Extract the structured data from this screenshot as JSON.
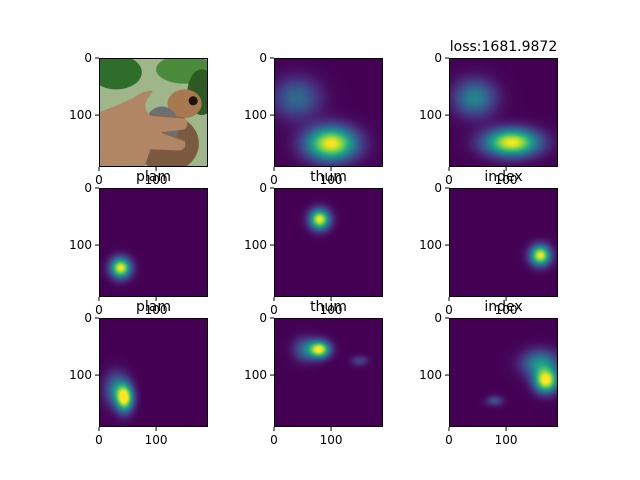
{
  "figure": {
    "title": "loss:1681.9872"
  },
  "chart_data": [
    {
      "type": "heatmap",
      "content": "photo",
      "title": "",
      "xticks": [
        "0",
        "100"
      ],
      "yticks": [
        "0",
        "100"
      ],
      "xlim": [
        0,
        191
      ],
      "ylim": [
        191,
        0
      ]
    },
    {
      "type": "heatmap",
      "content": "heatmap",
      "title": "",
      "xticks": [
        "0",
        "100"
      ],
      "yticks": [
        "0",
        "100"
      ],
      "xlim": [
        0,
        191
      ],
      "ylim": [
        191,
        0
      ],
      "blobs": [
        {
          "x": 100,
          "y": 150,
          "sx": 30,
          "sy": 20,
          "v": 1.0
        },
        {
          "x": 40,
          "y": 70,
          "sx": 28,
          "sy": 24,
          "v": 0.35
        }
      ]
    },
    {
      "type": "heatmap",
      "content": "heatmap",
      "title": "loss:1681.9872",
      "xticks": [
        "0",
        "100"
      ],
      "yticks": [
        "0",
        "100"
      ],
      "xlim": [
        0,
        191
      ],
      "ylim": [
        191,
        0
      ],
      "blobs": [
        {
          "x": 110,
          "y": 148,
          "sx": 32,
          "sy": 16,
          "v": 1.0
        },
        {
          "x": 45,
          "y": 70,
          "sx": 25,
          "sy": 22,
          "v": 0.45
        }
      ]
    },
    {
      "type": "heatmap",
      "content": "heatmap",
      "title": "plam",
      "xticks": [
        "0",
        "100"
      ],
      "yticks": [
        "0",
        "100"
      ],
      "xlim": [
        0,
        191
      ],
      "ylim": [
        191,
        0
      ],
      "blobs": [
        {
          "x": 38,
          "y": 140,
          "sx": 12,
          "sy": 12,
          "v": 1.0
        }
      ]
    },
    {
      "type": "heatmap",
      "content": "heatmap",
      "title": "thum",
      "xticks": [
        "0",
        "100"
      ],
      "yticks": [
        "0",
        "100"
      ],
      "xlim": [
        0,
        191
      ],
      "ylim": [
        191,
        0
      ],
      "blobs": [
        {
          "x": 80,
          "y": 55,
          "sx": 12,
          "sy": 12,
          "v": 1.0
        }
      ]
    },
    {
      "type": "heatmap",
      "content": "heatmap",
      "title": "index",
      "xticks": [
        "0",
        "100"
      ],
      "yticks": [
        "0",
        "100"
      ],
      "xlim": [
        0,
        191
      ],
      "ylim": [
        191,
        0
      ],
      "blobs": [
        {
          "x": 160,
          "y": 118,
          "sx": 12,
          "sy": 12,
          "v": 1.0
        }
      ]
    },
    {
      "type": "heatmap",
      "content": "heatmap",
      "title": "plam",
      "xticks": [
        "0",
        "100"
      ],
      "yticks": [
        "0",
        "100"
      ],
      "xlim": [
        0,
        191
      ],
      "ylim": [
        191,
        0
      ],
      "blobs": [
        {
          "x": 45,
          "y": 140,
          "sx": 10,
          "sy": 16,
          "v": 1.0
        },
        {
          "x": 30,
          "y": 125,
          "sx": 14,
          "sy": 20,
          "v": 0.4
        }
      ]
    },
    {
      "type": "heatmap",
      "content": "heatmap",
      "title": "thum",
      "xticks": [
        "0",
        "100"
      ],
      "yticks": [
        "0",
        "100"
      ],
      "xlim": [
        0,
        191
      ],
      "ylim": [
        191,
        0
      ],
      "blobs": [
        {
          "x": 80,
          "y": 55,
          "sx": 12,
          "sy": 10,
          "v": 1.0
        },
        {
          "x": 55,
          "y": 55,
          "sx": 14,
          "sy": 14,
          "v": 0.35
        },
        {
          "x": 150,
          "y": 75,
          "sx": 10,
          "sy": 6,
          "v": 0.2
        }
      ]
    },
    {
      "type": "heatmap",
      "content": "heatmap",
      "title": "index",
      "xticks": [
        "0",
        "100"
      ],
      "yticks": [
        "0",
        "100"
      ],
      "xlim": [
        0,
        191
      ],
      "ylim": [
        191,
        0
      ],
      "blobs": [
        {
          "x": 170,
          "y": 110,
          "sx": 14,
          "sy": 14,
          "v": 1.0
        },
        {
          "x": 160,
          "y": 80,
          "sx": 22,
          "sy": 16,
          "v": 0.5
        },
        {
          "x": 80,
          "y": 145,
          "sx": 10,
          "sy": 6,
          "v": 0.25
        }
      ]
    }
  ]
}
